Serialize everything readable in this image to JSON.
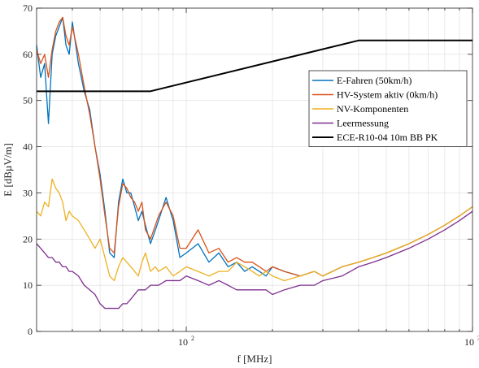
{
  "chart_data": {
    "type": "line",
    "xscale": "log",
    "xlim": [
      30,
      1000
    ],
    "ylim": [
      0,
      70
    ],
    "xlabel": "f [MHz]",
    "ylabel": "E [dBµV/m]",
    "grid": true,
    "legend_position": "right",
    "x_ticks": [
      {
        "value": 100,
        "label": "10",
        "exp": "2"
      },
      {
        "value": 1000,
        "label": "10",
        "exp": "3"
      }
    ],
    "y_ticks": [
      0,
      10,
      20,
      30,
      40,
      50,
      60,
      70
    ],
    "series": [
      {
        "name": "E-Fahren (50km/h)",
        "color": "#0072BD",
        "x": [
          30,
          31,
          32,
          33,
          34,
          35,
          36,
          37,
          38,
          39,
          40,
          42,
          44,
          46,
          48,
          50,
          52,
          54,
          56,
          58,
          60,
          62,
          64,
          66,
          68,
          70,
          72,
          75,
          78,
          80,
          85,
          90,
          95,
          100,
          110,
          120,
          130,
          140,
          150,
          160,
          170,
          180,
          190,
          200,
          220,
          250,
          280,
          300,
          350,
          400,
          450,
          500,
          600,
          700,
          800,
          900,
          1000
        ],
        "y": [
          62,
          55,
          58,
          45,
          60,
          64,
          66,
          68,
          62,
          60,
          67,
          58,
          52,
          48,
          40,
          34,
          26,
          17,
          16,
          28,
          33,
          30,
          30,
          27,
          24,
          26,
          23,
          19,
          22,
          24,
          29,
          24,
          16,
          17,
          19,
          15,
          17,
          14,
          15,
          13,
          14,
          13,
          12,
          14,
          13,
          12,
          13,
          12,
          14,
          15,
          16,
          17,
          19,
          21,
          23,
          25,
          27
        ]
      },
      {
        "name": "HV-System aktiv (0km/h)",
        "color": "#D95319",
        "x": [
          30,
          31,
          32,
          33,
          34,
          35,
          36,
          37,
          38,
          39,
          40,
          42,
          44,
          46,
          48,
          50,
          52,
          54,
          56,
          58,
          60,
          62,
          64,
          66,
          68,
          70,
          72,
          75,
          78,
          80,
          85,
          90,
          95,
          100,
          110,
          120,
          130,
          140,
          150,
          160,
          170,
          180,
          190,
          200,
          220,
          250,
          280,
          300,
          350,
          400,
          450,
          500,
          600,
          700,
          800,
          900,
          1000
        ],
        "y": [
          61,
          58,
          60,
          55,
          61,
          65,
          67,
          68,
          64,
          62,
          66,
          60,
          53,
          47,
          40,
          33,
          25,
          18,
          17,
          27,
          32,
          31,
          29,
          28,
          26,
          28,
          22,
          20,
          23,
          25,
          28,
          25,
          18,
          18,
          22,
          17,
          18,
          15,
          16,
          15,
          15,
          14,
          13,
          14,
          13,
          12,
          13,
          12,
          14,
          15,
          16,
          17,
          19,
          21,
          23,
          25,
          27
        ]
      },
      {
        "name": "NV-Komponenten",
        "color": "#EDB120",
        "x": [
          30,
          31,
          32,
          33,
          34,
          35,
          36,
          37,
          38,
          39,
          40,
          42,
          44,
          46,
          48,
          50,
          52,
          54,
          56,
          58,
          60,
          62,
          64,
          66,
          68,
          70,
          72,
          75,
          78,
          80,
          85,
          90,
          95,
          100,
          110,
          120,
          130,
          140,
          150,
          160,
          170,
          180,
          190,
          200,
          220,
          250,
          280,
          300,
          350,
          400,
          450,
          500,
          600,
          700,
          800,
          900,
          1000
        ],
        "y": [
          26,
          25,
          28,
          27,
          33,
          31,
          30,
          28,
          24,
          26,
          25,
          24,
          22,
          20,
          18,
          20,
          16,
          12,
          11,
          14,
          16,
          15,
          14,
          13,
          12,
          15,
          17,
          13,
          14,
          13,
          14,
          12,
          13,
          14,
          13,
          12,
          13,
          13,
          15,
          14,
          13,
          12,
          13,
          12,
          11,
          12,
          13,
          12,
          14,
          15,
          16,
          17,
          19,
          21,
          23,
          25,
          27
        ]
      },
      {
        "name": "Leermessung",
        "color": "#7E2F8E",
        "x": [
          30,
          31,
          32,
          33,
          34,
          35,
          36,
          37,
          38,
          39,
          40,
          42,
          44,
          46,
          48,
          50,
          52,
          54,
          56,
          58,
          60,
          62,
          64,
          66,
          68,
          70,
          72,
          75,
          78,
          80,
          85,
          90,
          95,
          100,
          110,
          120,
          130,
          140,
          150,
          160,
          170,
          180,
          190,
          200,
          220,
          250,
          280,
          300,
          350,
          400,
          450,
          500,
          600,
          700,
          800,
          900,
          1000
        ],
        "y": [
          19,
          18,
          17,
          16,
          16,
          15,
          15,
          14,
          14,
          13,
          13,
          12,
          10,
          9,
          8,
          6,
          5,
          5,
          5,
          5,
          6,
          6,
          7,
          8,
          9,
          9,
          9,
          10,
          10,
          10,
          11,
          11,
          11,
          12,
          11,
          10,
          11,
          10,
          9,
          9,
          9,
          9,
          9,
          8,
          9,
          10,
          10,
          11,
          12,
          14,
          15,
          16,
          18,
          20,
          22,
          24,
          26
        ]
      },
      {
        "name": "ECE-R10-04 10m BB PK",
        "color": "#000000",
        "x": [
          30,
          75,
          400,
          1000
        ],
        "y": [
          52,
          52,
          63,
          63
        ]
      }
    ]
  }
}
